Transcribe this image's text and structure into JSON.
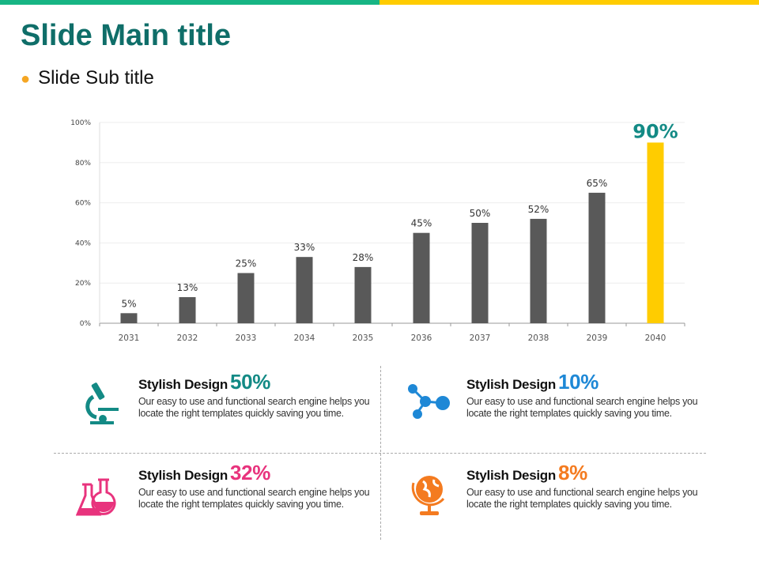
{
  "header": {
    "title": "Slide Main title",
    "subtitle": "Slide Sub title",
    "bar_colors": [
      "#17b584",
      "#ffcc00"
    ]
  },
  "chart_data": {
    "type": "bar",
    "categories": [
      "2031",
      "2032",
      "2033",
      "2034",
      "2035",
      "2036",
      "2037",
      "2038",
      "2039",
      "2040"
    ],
    "values": [
      5,
      13,
      25,
      33,
      28,
      45,
      50,
      52,
      65,
      90
    ],
    "data_labels": [
      "5%",
      "13%",
      "25%",
      "33%",
      "28%",
      "45%",
      "50%",
      "52%",
      "65%",
      "90%"
    ],
    "yticks": [
      "0%",
      "20%",
      "40%",
      "60%",
      "80%",
      "100%"
    ],
    "ylim": [
      0,
      100
    ],
    "grid": true,
    "colors": {
      "default": "#595959",
      "highlight": "#ffcc00",
      "highlight_label": "#138a85"
    },
    "highlight_index": 9
  },
  "items": [
    {
      "title": "Stylish Design",
      "pct": "50%",
      "color": "#138a85",
      "icon": "microscope-icon",
      "text": "Our easy to use and functional search engine helps you locate the right templates quickly saving you time."
    },
    {
      "title": "Stylish Design",
      "pct": "10%",
      "color": "#1e88d6",
      "icon": "molecule-icon",
      "text": "Our easy to use and functional search engine helps you locate the right templates quickly saving you time."
    },
    {
      "title": "Stylish Design",
      "pct": "32%",
      "color": "#e8337d",
      "icon": "flasks-icon",
      "text": "Our easy to use and functional search engine helps you locate the right templates quickly saving you time."
    },
    {
      "title": "Stylish Design",
      "pct": "8%",
      "color": "#f47b20",
      "icon": "globe-icon",
      "text": "Our easy to use and functional search engine helps you locate the right templates quickly saving you time."
    }
  ]
}
